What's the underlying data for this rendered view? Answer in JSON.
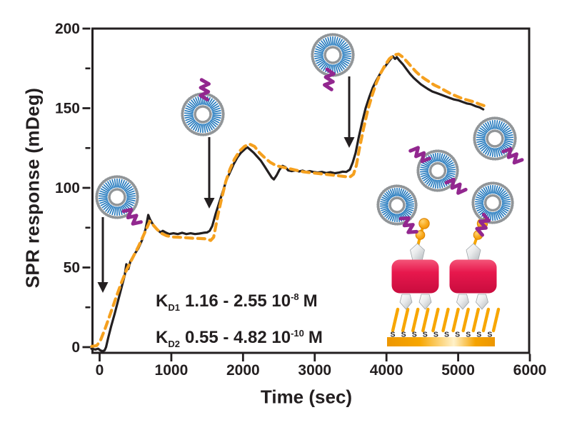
{
  "axes": {
    "x": {
      "label": "Time (sec)",
      "ticks": [
        0,
        1000,
        2000,
        3000,
        4000,
        5000,
        6000
      ]
    },
    "y": {
      "label": "SPR response (mDeg)",
      "ticks": [
        0,
        50,
        100,
        150,
        200
      ],
      "minor_ticks": [
        25,
        75,
        125,
        175
      ]
    }
  },
  "annotations": {
    "kd1": {
      "base": "K",
      "sub": "D1",
      "value": "1.16 - 2.55 10",
      "exp": "-8",
      "unit": "M"
    },
    "kd2": {
      "base": "K",
      "sub": "D2",
      "value": "0.55 - 4.82 10",
      "exp": "-10",
      "unit": "M"
    }
  },
  "schematic": {
    "thiol_label": "S",
    "thiol_count": 11,
    "s_count": 10
  },
  "colors": {
    "text": "#231F20",
    "measured_line": "#231F20",
    "fit_line": "#F5A01E",
    "liposome_blue": "#1E76BC",
    "lipid_head_gray": "#919598",
    "protein_purple": "#92278F",
    "gold": "#F7A600",
    "streptavidin_red": "#E7184D"
  },
  "chart_data": {
    "type": "line",
    "title": "",
    "xlabel": "Time (sec)",
    "ylabel": "SPR response (mDeg)",
    "xlim": [
      -120,
      6000
    ],
    "ylim": [
      -6,
      200
    ],
    "grid": false,
    "x_ticks": [
      0,
      1000,
      2000,
      3000,
      4000,
      5000,
      6000
    ],
    "y_ticks": [
      0,
      50,
      100,
      150,
      200
    ],
    "y_minor_ticks": [
      25,
      75,
      125,
      175
    ],
    "injection_times": [
      30,
      1520,
      3460
    ],
    "series": [
      {
        "name": "measured",
        "style": "solid",
        "color": "#231F20",
        "points": [
          [
            -115,
            -1
          ],
          [
            -60,
            -1.5
          ],
          [
            -20,
            -1
          ],
          [
            10,
            -2
          ],
          [
            40,
            -2.5
          ],
          [
            70,
            -2
          ],
          [
            90,
            0
          ],
          [
            120,
            6
          ],
          [
            160,
            13
          ],
          [
            210,
            21
          ],
          [
            280,
            33
          ],
          [
            350,
            45
          ],
          [
            372,
            52
          ],
          [
            400,
            49
          ],
          [
            430,
            54
          ],
          [
            480,
            58
          ],
          [
            540,
            62
          ],
          [
            590,
            67
          ],
          [
            640,
            74
          ],
          [
            678,
            83
          ],
          [
            700,
            80.5
          ],
          [
            730,
            78
          ],
          [
            770,
            75.5
          ],
          [
            810,
            73.5
          ],
          [
            850,
            72
          ],
          [
            880,
            73
          ],
          [
            920,
            72
          ],
          [
            970,
            71
          ],
          [
            1030,
            71.5
          ],
          [
            1090,
            71
          ],
          [
            1150,
            71.8
          ],
          [
            1210,
            71
          ],
          [
            1270,
            71.5
          ],
          [
            1330,
            71
          ],
          [
            1390,
            71.3
          ],
          [
            1450,
            71.8
          ],
          [
            1500,
            72
          ],
          [
            1535,
            73
          ],
          [
            1570,
            76
          ],
          [
            1620,
            84
          ],
          [
            1670,
            91
          ],
          [
            1720,
            98
          ],
          [
            1770,
            105
          ],
          [
            1820,
            110
          ],
          [
            1870,
            115
          ],
          [
            1920,
            119
          ],
          [
            1970,
            122
          ],
          [
            2030,
            124.5
          ],
          [
            2060,
            125.5
          ],
          [
            2100,
            124
          ],
          [
            2150,
            122
          ],
          [
            2200,
            119.5
          ],
          [
            2250,
            117
          ],
          [
            2300,
            113.5
          ],
          [
            2350,
            110
          ],
          [
            2400,
            106.5
          ],
          [
            2430,
            105.3
          ],
          [
            2470,
            108
          ],
          [
            2510,
            111.5
          ],
          [
            2550,
            113.8
          ],
          [
            2590,
            113
          ],
          [
            2630,
            111
          ],
          [
            2680,
            110.5
          ],
          [
            2730,
            111
          ],
          [
            2780,
            110.3
          ],
          [
            2830,
            110.8
          ],
          [
            2880,
            110
          ],
          [
            2930,
            110.5
          ],
          [
            2980,
            110
          ],
          [
            3040,
            109.6
          ],
          [
            3100,
            110
          ],
          [
            3160,
            109.3
          ],
          [
            3220,
            109.8
          ],
          [
            3280,
            109.2
          ],
          [
            3340,
            109.6
          ],
          [
            3390,
            110.2
          ],
          [
            3440,
            110
          ],
          [
            3490,
            111.5
          ],
          [
            3530,
            116
          ],
          [
            3570,
            122
          ],
          [
            3610,
            131
          ],
          [
            3660,
            141
          ],
          [
            3710,
            150
          ],
          [
            3760,
            157
          ],
          [
            3810,
            163
          ],
          [
            3860,
            167.5
          ],
          [
            3910,
            171.5
          ],
          [
            3960,
            175
          ],
          [
            4010,
            178
          ],
          [
            4060,
            181
          ],
          [
            4090,
            182.5
          ],
          [
            4120,
            181
          ],
          [
            4145,
            182
          ],
          [
            4180,
            180
          ],
          [
            4230,
            177.5
          ],
          [
            4280,
            174.5
          ],
          [
            4330,
            171.5
          ],
          [
            4380,
            169
          ],
          [
            4430,
            167
          ],
          [
            4480,
            165
          ],
          [
            4530,
            163.5
          ],
          [
            4580,
            162
          ],
          [
            4640,
            160.5
          ],
          [
            4700,
            159.5
          ],
          [
            4760,
            158.5
          ],
          [
            4820,
            157.5
          ],
          [
            4880,
            156.5
          ],
          [
            4940,
            155.5
          ],
          [
            5000,
            155
          ],
          [
            5060,
            154
          ],
          [
            5120,
            153
          ],
          [
            5180,
            152.5
          ],
          [
            5240,
            151.3
          ],
          [
            5300,
            150.5
          ],
          [
            5350,
            149.3
          ]
        ]
      },
      {
        "name": "fit",
        "style": "dashed",
        "color": "#F5A01E",
        "points": [
          [
            -110,
            0.5
          ],
          [
            -40,
            1
          ],
          [
            10,
            4
          ],
          [
            80,
            12
          ],
          [
            150,
            21
          ],
          [
            220,
            30
          ],
          [
            300,
            40
          ],
          [
            380,
            49
          ],
          [
            460,
            56
          ],
          [
            540,
            63
          ],
          [
            610,
            70
          ],
          [
            670,
            76
          ],
          [
            700,
            79
          ],
          [
            740,
            77
          ],
          [
            800,
            74
          ],
          [
            860,
            71.5
          ],
          [
            930,
            70
          ],
          [
            1010,
            69.2
          ],
          [
            1100,
            69
          ],
          [
            1200,
            68.7
          ],
          [
            1300,
            68.4
          ],
          [
            1400,
            68.2
          ],
          [
            1490,
            68
          ],
          [
            1550,
            67
          ],
          [
            1590,
            69
          ],
          [
            1650,
            83
          ],
          [
            1700,
            93
          ],
          [
            1760,
            104
          ],
          [
            1820,
            112
          ],
          [
            1880,
            118
          ],
          [
            1950,
            123
          ],
          [
            2020,
            126
          ],
          [
            2090,
            127.5
          ],
          [
            2160,
            126
          ],
          [
            2230,
            122
          ],
          [
            2300,
            119
          ],
          [
            2380,
            116
          ],
          [
            2460,
            114
          ],
          [
            2550,
            113
          ],
          [
            2650,
            112
          ],
          [
            2750,
            111
          ],
          [
            2850,
            110
          ],
          [
            2950,
            109.5
          ],
          [
            3050,
            109
          ],
          [
            3150,
            108.5
          ],
          [
            3250,
            108
          ],
          [
            3350,
            107.5
          ],
          [
            3440,
            107
          ],
          [
            3490,
            106.8
          ],
          [
            3540,
            108.5
          ],
          [
            3580,
            114
          ],
          [
            3620,
            124
          ],
          [
            3680,
            137
          ],
          [
            3740,
            149
          ],
          [
            3800,
            158
          ],
          [
            3860,
            166
          ],
          [
            3920,
            172
          ],
          [
            3980,
            177
          ],
          [
            4040,
            181
          ],
          [
            4110,
            183.5
          ],
          [
            4170,
            184
          ],
          [
            4230,
            182
          ],
          [
            4290,
            179
          ],
          [
            4350,
            176
          ],
          [
            4410,
            173
          ],
          [
            4470,
            170.5
          ],
          [
            4530,
            168.5
          ],
          [
            4600,
            166.5
          ],
          [
            4670,
            164.5
          ],
          [
            4740,
            163
          ],
          [
            4820,
            161
          ],
          [
            4900,
            159
          ],
          [
            4980,
            157.5
          ],
          [
            5060,
            156
          ],
          [
            5140,
            155
          ],
          [
            5220,
            154
          ],
          [
            5300,
            152.5
          ],
          [
            5370,
            151.5
          ]
        ]
      }
    ],
    "annotations": [
      "KD1 1.16 - 2.55 10^-8 M",
      "KD2 0.55 - 4.82 10^-10 M"
    ]
  }
}
